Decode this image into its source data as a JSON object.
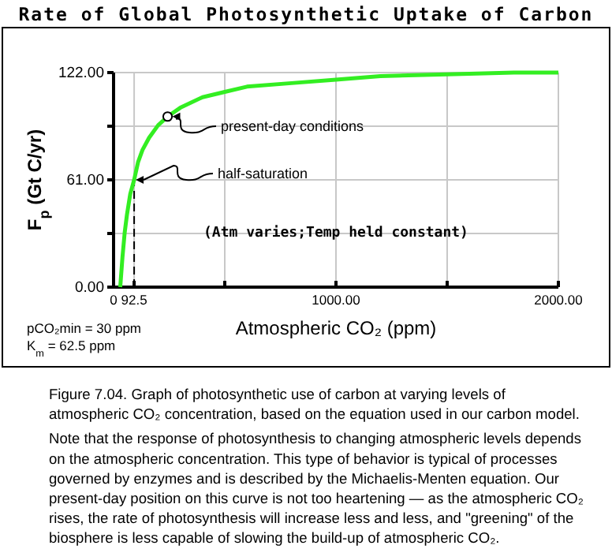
{
  "chart_data": {
    "type": "line",
    "title": "Rate of Global Photosynthetic Uptake of Carbon",
    "xlabel": "Atmospheric CO₂ (ppm)",
    "ylabel": "F$_{p}$ (Gt C/yr)",
    "x": [
      30,
      40,
      50,
      60,
      75,
      92.5,
      110,
      130,
      160,
      200,
      243,
      300,
      400,
      500,
      600,
      800,
      1000,
      1200,
      1500,
      1800,
      2000
    ],
    "series": [
      {
        "color": "#33ee22",
        "values": [
          0,
          17,
          31,
          41,
          53,
          61,
          71,
          78,
          85,
          92,
          97,
          102,
          108,
          111,
          114,
          116,
          118,
          120,
          121,
          122,
          122
        ]
      }
    ],
    "xlim": [
      0,
      2000
    ],
    "ylim": [
      0,
      122
    ],
    "xticks": [
      0,
      92.5,
      {
        "value": 500,
        "label": null
      },
      {
        "value": 1000,
        "label": "1000.00"
      },
      {
        "value": 1500,
        "label": null
      },
      {
        "value": 2000,
        "label": "2000.00"
      }
    ],
    "yticks": [
      {
        "value": 0,
        "label": "0.00"
      },
      {
        "value": 30.5,
        "label": null
      },
      {
        "value": 61,
        "label": "61.00"
      },
      {
        "value": 91.5,
        "label": null
      },
      {
        "value": 122,
        "label": "122.00"
      }
    ],
    "grid": true,
    "marker": "none",
    "line_style": "solid",
    "ref_lines": [
      {
        "axis": "x",
        "value": 92.5,
        "color": "#000000",
        "line_style": "dashed"
      }
    ],
    "annotations": [
      {
        "text": "present-day conditions",
        "x": 243,
        "y": 97
      },
      {
        "text": "half-saturation",
        "x": 92.5,
        "y": 61
      },
      "(Atm varies;Temp held constant)",
      "pCO₂min = 30 ppm",
      "K$_{m}$ = 62.5 ppm",
      "Figure 7.04.  Graph of photosynthetic use of carbon at varying levels of",
      "atmospheric CO₂ concentration, based on the equation used in our carbon model.",
      "Note that the response of photosynthesis to changing atmospheric levels depends",
      "on the atmospheric concentration.  This type of behavior is typical of processes",
      "governed by enzymes and is described by the Michaelis-Menten equation.  Our",
      "present-day position on this curve is not too heartening — as the atmospheric CO₂",
      "rises, the rate of photosynthesis will increase less and less, and \"greening\" of the",
      "biosphere is less capable of slowing the build-up of atmospheric CO₂."
    ]
  }
}
